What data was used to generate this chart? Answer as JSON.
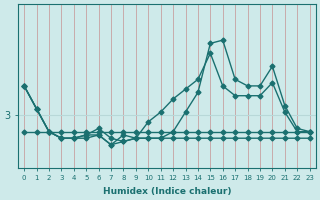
{
  "xlabel": "Humidex (Indice chaleur)",
  "ylabel": "",
  "bg_color": "#ceeaea",
  "line_color": "#1a7070",
  "vgrid_color": "#c8a0a0",
  "hgrid_color": "#b8d8d8",
  "x_min": 0,
  "x_max": 23,
  "ylim": [
    2.2,
    4.7
  ],
  "yticks": [
    3.0
  ],
  "series_x": [
    0,
    1,
    2,
    3,
    4,
    5,
    6,
    7,
    8,
    9,
    10,
    11,
    12,
    13,
    14,
    15,
    16,
    17,
    18,
    19,
    20,
    21,
    22,
    23
  ],
  "y_flat": [
    2.75,
    2.75,
    2.75,
    2.75,
    2.75,
    2.75,
    2.75,
    2.75,
    2.75,
    2.75,
    2.75,
    2.75,
    2.75,
    2.75,
    2.75,
    2.75,
    2.75,
    2.75,
    2.75,
    2.75,
    2.75,
    2.75,
    2.75,
    2.75
  ],
  "y_zigzag": [
    3.45,
    3.1,
    2.75,
    2.65,
    2.65,
    2.65,
    2.7,
    2.55,
    2.7,
    2.65,
    2.65,
    2.65,
    2.65,
    2.65,
    2.65,
    2.65,
    2.65,
    2.65,
    2.65,
    2.65,
    2.65,
    2.65,
    2.65,
    2.65
  ],
  "y_spike": [
    3.45,
    3.1,
    2.75,
    2.65,
    2.65,
    2.7,
    2.7,
    2.55,
    2.6,
    2.65,
    2.65,
    2.65,
    2.75,
    3.05,
    3.35,
    4.1,
    4.15,
    3.55,
    3.45,
    3.45,
    3.75,
    3.15,
    2.8,
    2.75
  ],
  "y_ramp": [
    3.45,
    3.1,
    2.75,
    2.65,
    2.65,
    2.7,
    2.8,
    2.65,
    2.6,
    2.65,
    2.9,
    3.05,
    3.25,
    3.4,
    3.55,
    3.95,
    3.45,
    3.3,
    3.3,
    3.3,
    3.5,
    3.05,
    2.75,
    2.75
  ]
}
